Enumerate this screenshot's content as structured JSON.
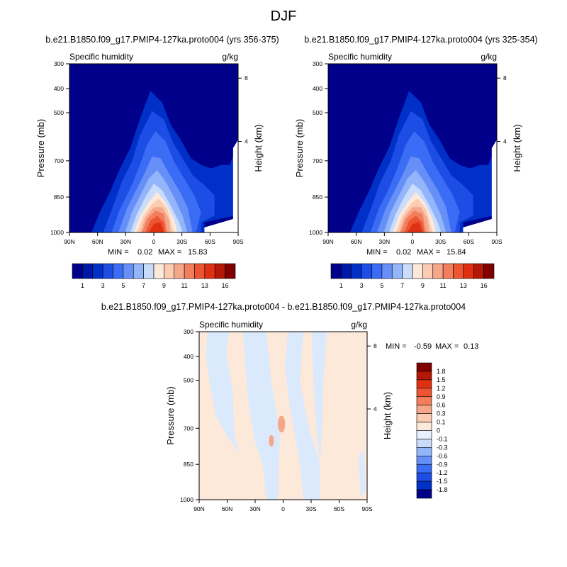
{
  "figure": {
    "title": "DJF"
  },
  "chart_data": [
    {
      "type": "heatmap",
      "title": "b.e21.B1850.f09_g17.PMIP4-127ka.proto004 (yrs 356-375)",
      "left_subtitle": "Specific humidity",
      "right_subtitle": "g/kg",
      "xlabel": "",
      "ylabel": "Pressure (mb)",
      "y2label": "Height (km)",
      "x_ticks": [
        "90N",
        "60N",
        "30N",
        "0",
        "30S",
        "60S",
        "90S"
      ],
      "y_ticks": [
        "300",
        "400",
        "500",
        "700",
        "850",
        "1000"
      ],
      "y2_ticks": [
        "8",
        "4"
      ],
      "ylim": [
        1000,
        300
      ],
      "stats": {
        "min_label": "MIN =",
        "min": "0.02",
        "max_label": "MAX =",
        "max": "15.83"
      },
      "colorbar": {
        "orientation": "horizontal",
        "labels": [
          "1",
          "3",
          "5",
          "7",
          "9",
          "11",
          "13",
          "16"
        ]
      }
    },
    {
      "type": "heatmap",
      "title": "b.e21.B1850.f09_g17.PMIP4-127ka.proto004 (yrs 325-354)",
      "left_subtitle": "Specific humidity",
      "right_subtitle": "g/kg",
      "xlabel": "",
      "ylabel": "Pressure (mb)",
      "y2label": "Height (km)",
      "x_ticks": [
        "90N",
        "60N",
        "30N",
        "0",
        "30S",
        "60S",
        "90S"
      ],
      "y_ticks": [
        "300",
        "400",
        "500",
        "700",
        "850",
        "1000"
      ],
      "y2_ticks": [
        "8",
        "4"
      ],
      "ylim": [
        1000,
        300
      ],
      "stats": {
        "min_label": "MIN =",
        "min": "0.02",
        "max_label": "MAX =",
        "max": "15.84"
      },
      "colorbar": {
        "orientation": "horizontal",
        "labels": [
          "1",
          "3",
          "5",
          "7",
          "9",
          "11",
          "13",
          "16"
        ]
      }
    },
    {
      "type": "heatmap",
      "title": "b.e21.B1850.f09_g17.PMIP4-127ka.proto004 - b.e21.B1850.f09_g17.PMIP4-127ka.proto004",
      "left_subtitle": "Specific humidity",
      "right_subtitle": "g/kg",
      "xlabel": "",
      "ylabel": "Pressure (mb)",
      "y2label": "Height (km)",
      "x_ticks": [
        "90N",
        "60N",
        "30N",
        "0",
        "30S",
        "60S",
        "90S"
      ],
      "y_ticks": [
        "300",
        "400",
        "500",
        "700",
        "850",
        "1000"
      ],
      "y2_ticks": [
        "8",
        "4"
      ],
      "ylim": [
        1000,
        300
      ],
      "stats": {
        "min_label": "MIN =",
        "min": "-0.59",
        "max_label": "MAX =",
        "max": "0.13"
      },
      "colorbar": {
        "orientation": "vertical",
        "labels": [
          "1.8",
          "1.5",
          "1.2",
          "0.9",
          "0.6",
          "0.3",
          "0.1",
          "0",
          "-0.1",
          "-0.3",
          "-0.6",
          "-0.9",
          "-1.2",
          "-1.5",
          "-1.8"
        ]
      }
    }
  ],
  "colors": {
    "seq_scale": [
      "#00008b",
      "#0018a8",
      "#0030c8",
      "#1c4de4",
      "#3b6cf5",
      "#6690f7",
      "#93b5f9",
      "#c9dcfc",
      "#fde9da",
      "#fbcbb2",
      "#f7a789",
      "#f37e5e",
      "#ed5532",
      "#df3111",
      "#b51707",
      "#800000"
    ],
    "div_scale": [
      "#800000",
      "#b51707",
      "#df3111",
      "#ed5532",
      "#f37e5e",
      "#f7a789",
      "#fbcbb2",
      "#fde9da",
      "#e8f0fd",
      "#c9dcfc",
      "#93b5f9",
      "#6690f7",
      "#3b6cf5",
      "#1c4de4",
      "#0030c8",
      "#00008b"
    ],
    "diff_positive": "#fde9da",
    "diff_negative": "#dbe9fc",
    "diff_strong_positive": "#f7a789"
  }
}
